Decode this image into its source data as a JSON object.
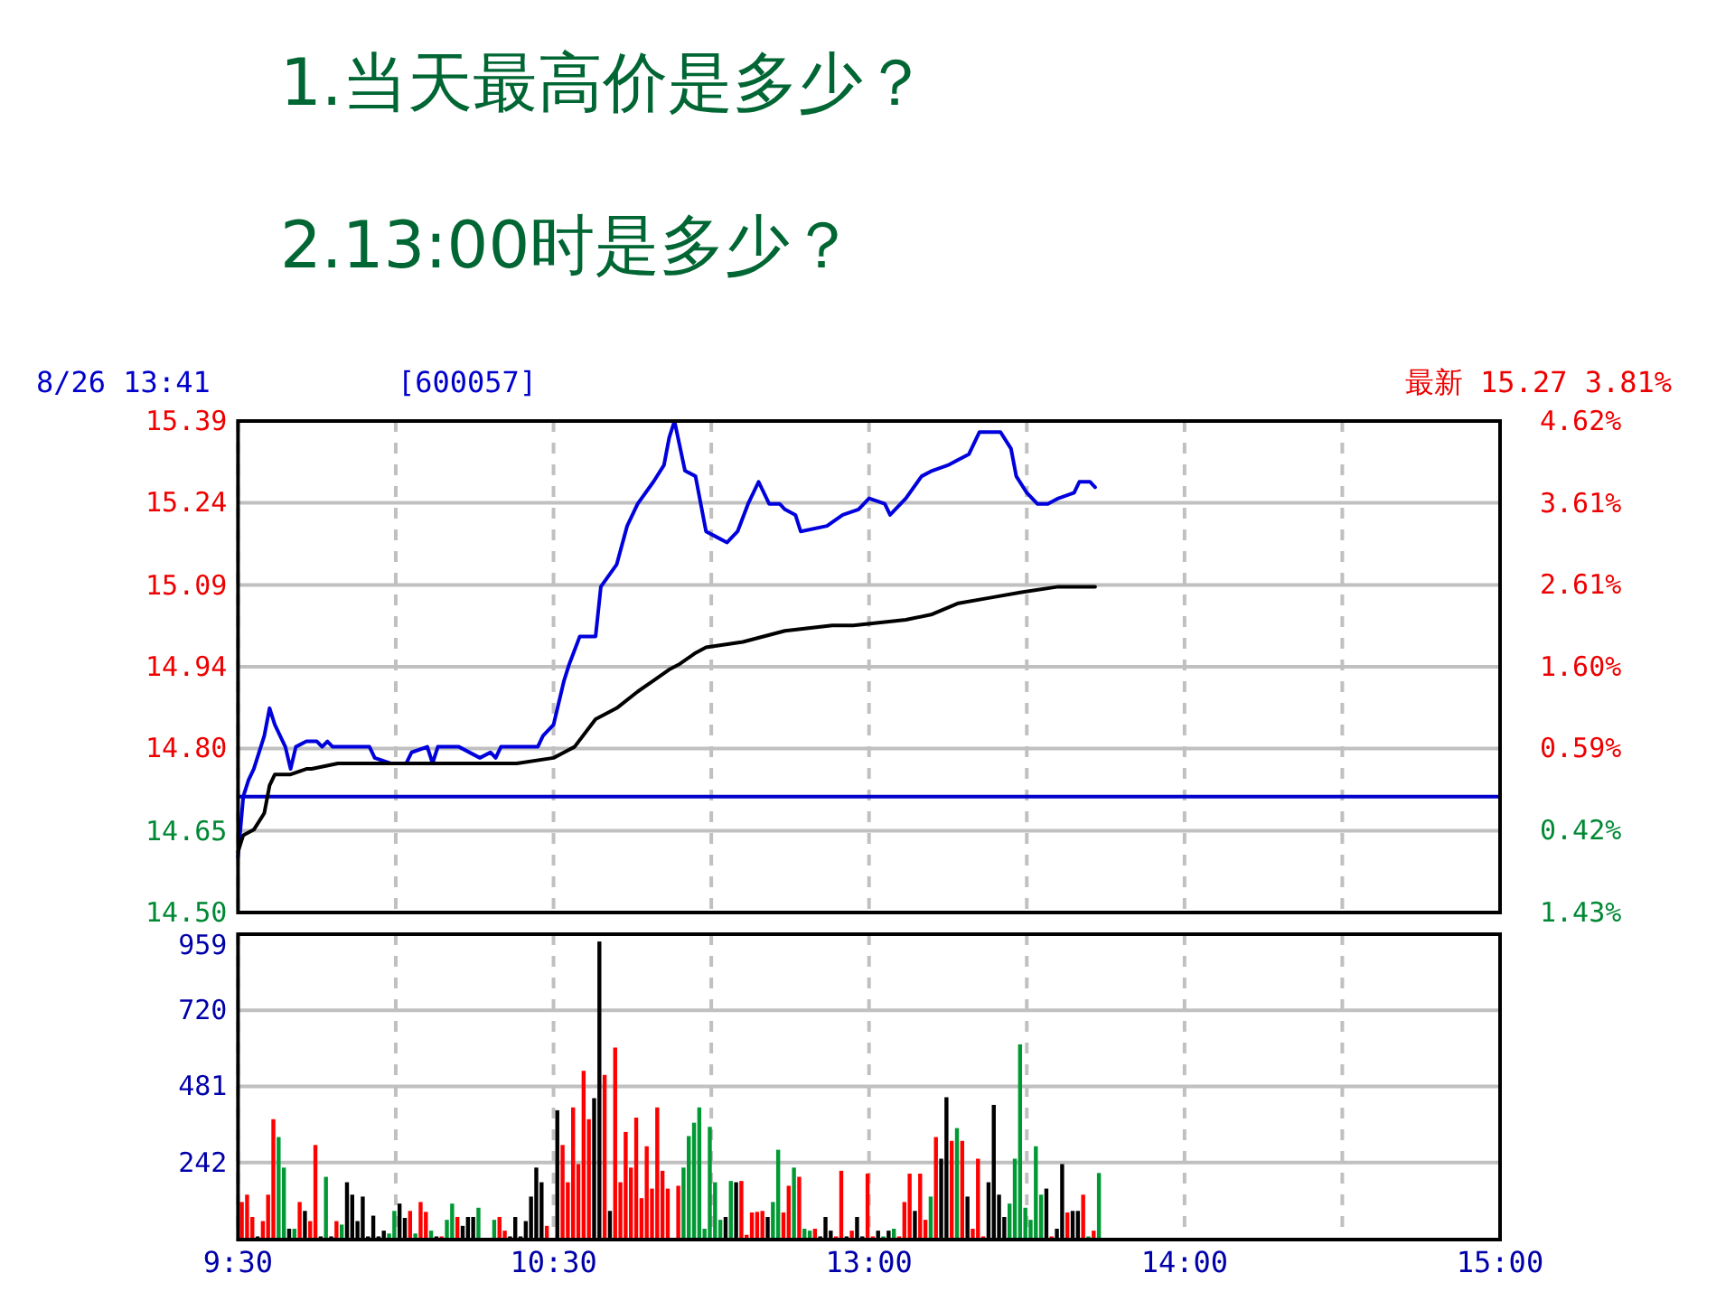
{
  "chart_data": [
    {
      "type": "line",
      "title": "1.当天最高价是多少？",
      "subtitle": "2.13:00时是多少？",
      "annotations": [
        "8/26 13:41",
        "[600057]",
        "最新 15.27 3.81%"
      ],
      "categories": [
        null,
        null,
        null,
        null,
        null,
        null,
        null,
        null,
        null,
        null,
        null,
        null,
        null,
        null,
        null,
        null,
        null,
        null,
        null,
        null,
        null,
        null,
        null,
        null,
        null,
        null,
        null,
        null,
        null,
        null,
        null,
        null,
        null,
        null,
        null,
        null,
        null,
        null,
        null,
        null,
        null,
        null,
        null,
        null,
        null,
        null,
        null,
        null,
        null,
        null,
        null,
        null,
        null,
        null,
        null,
        null,
        null,
        null,
        null,
        null,
        null,
        null,
        null,
        null,
        null,
        null,
        null,
        null,
        null,
        null,
        null,
        null,
        null,
        null,
        null,
        null,
        null,
        null,
        null,
        null,
        null,
        null,
        null,
        null,
        null,
        null,
        null,
        null,
        null,
        null,
        null,
        null,
        null,
        null,
        null,
        null,
        null,
        null,
        null,
        null,
        null,
        null,
        null,
        null,
        null,
        null,
        null,
        null,
        null,
        null,
        null,
        null,
        null,
        null,
        null,
        null,
        null,
        null,
        null,
        null,
        null,
        null,
        null,
        null,
        null,
        null,
        null,
        null,
        null,
        null,
        null,
        null,
        null,
        null,
        null,
        null,
        null,
        null,
        null,
        null,
        null,
        null,
        null,
        null,
        null,
        null,
        null,
        null,
        null,
        null,
        null,
        null,
        null,
        null,
        null,
        null,
        null,
        null,
        null,
        null,
        null,
        null,
        null,
        null,
        null,
        null,
        null,
        null,
        null,
        null,
        null,
        null,
        null,
        null,
        null,
        null,
        null,
        null,
        null,
        null,
        null,
        null,
        null,
        null,
        null,
        null,
        null,
        null,
        null,
        null,
        null,
        null,
        null,
        null,
        null,
        null,
        null,
        null,
        null,
        null,
        null,
        null,
        null,
        null,
        null,
        null,
        null,
        null,
        null,
        null,
        null,
        null,
        null,
        null,
        null,
        null,
        null,
        null,
        null,
        null,
        null,
        null,
        null,
        null,
        null,
        null,
        null,
        null,
        null,
        null,
        null,
        null,
        null,
        null,
        null,
        null,
        null,
        null,
        null,
        null,
        null
      ],
      "ylim": [
        14.5,
        15.39
      ],
      "yticks": [
        {
          "value": 14.5,
          "label": "14.50"
        },
        {
          "value": 14.648,
          "label": "14.65"
        },
        {
          "value": 14.797,
          "label": "14.80"
        },
        {
          "value": 14.945,
          "label": "14.94"
        },
        {
          "value": 15.093,
          "label": "15.09"
        },
        {
          "value": 15.242,
          "label": "15.24"
        },
        {
          "value": 15.39,
          "label": "15.39"
        }
      ],
      "y2lim": [
        -1.43,
        4.62
      ],
      "y2ticks": [
        {
          "value": -1.43,
          "label": "1.43%"
        },
        {
          "value": -0.42,
          "label": "0.42%"
        },
        {
          "value": 0.59,
          "label": "0.59%"
        },
        {
          "value": 1.6,
          "label": "1.60%"
        },
        {
          "value": 2.61,
          "label": "2.61%"
        },
        {
          "value": 3.61,
          "label": "3.61%"
        },
        {
          "value": 4.62,
          "label": "4.62%"
        }
      ],
      "tick_labels": "y",
      "grid": true,
      "ref_lines": [
        {
          "axis": "y",
          "value": 14.71,
          "color": "#0000cc"
        }
      ],
      "series": [
        {
          "color": "#0000dd",
          "values": [
            14.6,
            14.71,
            14.74,
            14.76,
            null,
            14.82,
            14.87,
            14.84,
            null,
            14.8,
            14.76,
            14.8,
            null,
            14.81,
            null,
            14.81,
            14.8,
            14.81,
            14.8,
            null,
            null,
            null,
            null,
            null,
            null,
            14.8,
            14.78,
            null,
            null,
            14.77,
            null,
            null,
            14.77,
            14.79,
            null,
            null,
            14.8,
            14.77,
            14.8,
            null,
            null,
            null,
            14.8,
            null,
            null,
            null,
            14.78,
            null,
            14.79,
            14.78,
            14.8,
            null,
            null,
            null,
            null,
            null,
            null,
            14.8,
            14.82,
            null,
            14.84,
            null,
            14.92,
            14.95,
            null,
            15.0,
            null,
            null,
            15.0,
            15.09,
            null,
            null,
            15.13,
            null,
            15.2,
            null,
            15.24,
            null,
            null,
            15.28,
            null,
            15.31,
            15.36,
            15.39,
            null,
            15.3,
            null,
            15.29,
            15.24,
            15.19,
            null,
            15.18,
            null,
            15.17,
            null,
            15.19,
            null,
            15.24,
            null,
            15.28,
            null,
            15.24,
            null,
            15.24,
            15.23,
            null,
            15.22,
            15.19,
            null,
            null,
            null,
            null,
            15.2,
            null,
            null,
            15.22,
            null,
            null,
            15.23,
            null,
            15.25,
            null,
            null,
            15.24,
            15.22,
            null,
            null,
            15.25,
            null,
            null,
            15.29,
            null,
            15.3,
            null,
            null,
            15.31,
            null,
            null,
            null,
            15.33,
            null,
            15.37,
            null,
            null,
            null,
            15.37,
            null,
            15.34,
            15.29,
            null,
            15.26,
            null,
            15.24,
            null,
            15.24,
            null,
            15.25,
            null,
            null,
            15.26,
            15.28,
            null,
            15.28,
            15.27,
            null,
            null,
            null,
            null,
            null,
            null,
            null,
            null,
            null,
            null,
            null,
            null,
            null,
            null,
            null,
            null,
            null,
            null,
            null,
            null,
            null,
            null,
            null,
            null,
            null,
            null,
            null,
            null,
            null,
            null,
            null,
            null,
            null,
            null,
            null,
            null,
            null,
            null,
            null,
            null,
            null,
            null,
            null,
            null,
            null,
            null,
            null,
            null,
            null,
            null,
            null,
            null,
            null,
            null,
            null,
            null,
            null,
            null,
            null,
            null,
            null,
            null,
            null,
            null,
            null,
            null,
            null,
            null,
            null,
            null,
            null,
            null,
            null,
            null,
            null,
            null,
            null
          ]
        },
        {
          "color": "#000000",
          "values": [
            14.61,
            14.64,
            null,
            14.65,
            null,
            14.68,
            14.73,
            14.75,
            null,
            null,
            14.75,
            null,
            null,
            14.76,
            14.76,
            null,
            null,
            null,
            null,
            14.77,
            null,
            null,
            null,
            null,
            null,
            null,
            14.77,
            null,
            null,
            null,
            null,
            null,
            null,
            null,
            null,
            null,
            null,
            null,
            null,
            null,
            null,
            null,
            null,
            null,
            null,
            null,
            null,
            null,
            null,
            null,
            null,
            null,
            null,
            14.77,
            null,
            null,
            null,
            null,
            null,
            null,
            14.78,
            null,
            14.79,
            null,
            14.8,
            null,
            null,
            null,
            14.85,
            null,
            null,
            null,
            14.87,
            null,
            null,
            null,
            14.9,
            null,
            null,
            14.92,
            null,
            null,
            14.94,
            null,
            14.95,
            null,
            null,
            14.97,
            null,
            14.98,
            null,
            null,
            null,
            null,
            null,
            null,
            14.99,
            null,
            null,
            null,
            null,
            null,
            null,
            null,
            15.01,
            null,
            null,
            null,
            null,
            null,
            null,
            null,
            null,
            15.02,
            null,
            null,
            null,
            15.02,
            null,
            null,
            null,
            null,
            null,
            null,
            null,
            null,
            null,
            15.03,
            null,
            null,
            null,
            null,
            15.04,
            null,
            null,
            null,
            null,
            15.06,
            null,
            null,
            null,
            null,
            null,
            15.07,
            null,
            null,
            null,
            null,
            null,
            15.08,
            null,
            null,
            null,
            null,
            null,
            null,
            15.09,
            null,
            null,
            null,
            null,
            null,
            null,
            15.09,
            null,
            null,
            null,
            null,
            null,
            null,
            null,
            null,
            null,
            null,
            null,
            null,
            null,
            null,
            null,
            null,
            null,
            null,
            null,
            null,
            null,
            null,
            null,
            null,
            null,
            null,
            null,
            null,
            null,
            null,
            null,
            null,
            null,
            null,
            null,
            null,
            null,
            null,
            null,
            null,
            null,
            null,
            null,
            null,
            null,
            null,
            null,
            null,
            null,
            null,
            null,
            null,
            null,
            null,
            null,
            null,
            null,
            null,
            null,
            null,
            null,
            null,
            null,
            null,
            null,
            null,
            null,
            null,
            null,
            null,
            null,
            null,
            null,
            null,
            null,
            null,
            null
          ]
        }
      ]
    },
    {
      "type": "bar",
      "categories": [
        "9:30",
        null,
        null,
        null,
        null,
        null,
        null,
        null,
        null,
        null,
        null,
        null,
        null,
        null,
        null,
        null,
        null,
        null,
        null,
        null,
        null,
        null,
        null,
        null,
        null,
        null,
        null,
        null,
        null,
        null,
        null,
        null,
        null,
        null,
        null,
        null,
        null,
        null,
        null,
        null,
        null,
        null,
        null,
        null,
        null,
        null,
        null,
        null,
        null,
        null,
        null,
        null,
        null,
        null,
        null,
        null,
        null,
        null,
        null,
        null,
        "10:30",
        null,
        null,
        null,
        null,
        null,
        null,
        null,
        null,
        null,
        null,
        null,
        null,
        null,
        null,
        null,
        null,
        null,
        null,
        null,
        null,
        null,
        null,
        null,
        null,
        null,
        null,
        null,
        null,
        null,
        null,
        null,
        null,
        null,
        null,
        null,
        null,
        null,
        null,
        null,
        null,
        null,
        null,
        null,
        null,
        null,
        null,
        null,
        null,
        null,
        null,
        null,
        null,
        null,
        null,
        null,
        null,
        null,
        null,
        null,
        "13:00",
        null,
        null,
        null,
        null,
        null,
        null,
        null,
        null,
        null,
        null,
        null,
        null,
        null,
        null,
        null,
        null,
        null,
        null,
        null,
        null,
        null,
        null,
        null,
        null,
        null,
        null,
        null,
        null,
        null,
        null,
        null,
        null,
        null,
        null,
        null,
        null,
        null,
        null,
        null,
        null,
        null,
        null,
        null,
        null,
        null,
        null,
        null,
        null,
        null,
        null,
        null,
        null,
        null,
        null,
        null,
        null,
        null,
        null,
        null,
        "14:00",
        null,
        null,
        null,
        null,
        null,
        null,
        null,
        null,
        null,
        null,
        null,
        null,
        null,
        null,
        null,
        null,
        null,
        null,
        null,
        null,
        null,
        null,
        null,
        null,
        null,
        null,
        null,
        null,
        null,
        null,
        null,
        null,
        null,
        null,
        null,
        null,
        null,
        null,
        null,
        null,
        null,
        null,
        null,
        null,
        null,
        null,
        null,
        null,
        null,
        null,
        null,
        null,
        null,
        null,
        null,
        null,
        null,
        null,
        null,
        "15:00"
      ],
      "ylim": [
        0,
        959
      ],
      "yticks": [
        242,
        481,
        720,
        959
      ],
      "grid": true,
      "values": [
        118,
        141,
        71,
        10,
        58,
        141,
        378,
        322,
        226,
        34,
        34,
        118,
        90,
        58,
        297,
        10,
        197,
        10,
        58,
        47,
        180,
        141,
        58,
        135,
        10,
        75,
        10,
        28,
        19,
        90,
        113,
        68,
        90,
        19,
        118,
        87,
        28,
        10,
        10,
        62,
        113,
        71,
        43,
        71,
        71,
        100,
        null,
        null,
        62,
        71,
        28,
        10,
        71,
        10,
        58,
        135,
        226,
        180,
        43,
        null,
        406,
        297,
        180,
        415,
        237,
        530,
        378,
        444,
        936,
        517,
        90,
        603,
        180,
        338,
        226,
        383,
        130,
        293,
        160,
        415,
        216,
        160,
        null,
        169,
        226,
        325,
        367,
        415,
        34,
        354,
        180,
        62,
        71,
        184,
        180,
        184,
        15,
        85,
        87,
        90,
        71,
        118,
        282,
        85,
        169,
        226,
        197,
        34,
        28,
        34,
        10,
        71,
        28,
        10,
        216,
        10,
        28,
        71,
        10,
        207,
        10,
        28,
        10,
        28,
        34,
        10,
        118,
        207,
        90,
        207,
        62,
        135,
        322,
        254,
        447,
        310,
        350,
        310,
        135,
        34,
        254,
        10,
        180,
        423,
        141,
        71,
        113,
        254,
        613,
        100,
        62,
        293,
        141,
        160,
        10,
        34,
        237,
        85,
        90,
        90,
        141,
        10,
        28,
        209,
        null,
        null,
        null,
        null,
        null,
        null,
        null,
        null,
        null,
        null,
        null,
        null,
        null,
        null,
        null,
        null,
        null,
        null,
        null,
        null,
        null,
        null,
        null,
        null,
        null,
        null,
        null,
        null,
        null,
        null,
        null,
        null,
        null,
        null,
        null,
        null,
        null,
        null,
        null,
        null,
        null,
        null,
        null,
        null,
        null,
        null,
        null,
        null,
        null,
        null,
        null,
        null,
        null,
        null,
        null,
        null,
        null,
        null,
        null,
        null,
        null,
        null,
        null,
        null,
        null,
        null,
        null,
        null,
        null,
        null,
        null,
        null,
        null,
        null,
        null,
        null,
        null
      ],
      "colors": [
        "#ff0000",
        "#ff0000",
        "#ff0000",
        "#000000",
        "#ff0000",
        "#ff0000",
        "#ff0000",
        "#009933",
        "#009933",
        "#000000",
        "#009933",
        "#ff0000",
        "#000000",
        "#ff0000",
        "#ff0000",
        "#000000",
        "#009933",
        "#000000",
        "#ff0000",
        "#009933",
        "#000000",
        "#000000",
        "#000000",
        "#000000",
        "#000000",
        "#000000",
        "#000000",
        "#000000",
        "#009933",
        "#009933",
        "#000000",
        "#000000",
        "#ff0000",
        "#009933",
        "#ff0000",
        "#ff0000",
        "#009933",
        "#000000",
        "#ff0000",
        "#009933",
        "#009933",
        "#ff0000",
        "#000000",
        "#000000",
        "#000000",
        "#009933",
        null,
        null,
        "#009933",
        "#ff0000",
        "#ff0000",
        "#000000",
        "#000000",
        "#000000",
        "#000000",
        "#000000",
        "#000000",
        "#000000",
        "#ff0000",
        null,
        "#000000",
        "#ff0000",
        "#ff0000",
        "#ff0000",
        "#ff0000",
        "#ff0000",
        "#ff0000",
        "#000000",
        "#000000",
        "#ff0000",
        "#000000",
        "#ff0000",
        "#ff0000",
        "#ff0000",
        "#ff0000",
        "#ff0000",
        "#ff0000",
        "#ff0000",
        "#ff0000",
        "#ff0000",
        "#ff0000",
        "#ff0000",
        null,
        "#ff0000",
        "#009933",
        "#009933",
        "#009933",
        "#009933",
        "#009933",
        "#009933",
        "#009933",
        "#009933",
        "#000000",
        "#009933",
        "#000000",
        "#ff0000",
        "#ff0000",
        "#ff0000",
        "#ff0000",
        "#ff0000",
        "#000000",
        "#009933",
        "#009933",
        "#ff0000",
        "#ff0000",
        "#009933",
        "#ff0000",
        "#009933",
        "#009933",
        "#ff0000",
        "#000000",
        "#000000",
        "#000000",
        "#ff0000",
        "#ff0000",
        "#000000",
        "#ff0000",
        "#000000",
        "#000000",
        "#ff0000",
        "#ff0000",
        "#000000",
        "#009933",
        "#000000",
        "#009933",
        "#ff0000",
        "#ff0000",
        "#ff0000",
        "#000000",
        "#ff0000",
        "#ff0000",
        "#009933",
        "#ff0000",
        "#000000",
        "#000000",
        "#ff0000",
        "#009933",
        "#ff0000",
        "#000000",
        "#ff0000",
        "#ff0000",
        "#ff0000",
        "#000000",
        "#000000",
        "#000000",
        "#000000",
        "#009933",
        "#009933",
        "#009933",
        "#009933",
        "#009933",
        "#009933",
        "#009933",
        "#000000",
        "#ff0000",
        "#000000",
        "#000000",
        "#ff0000",
        "#000000",
        "#000000",
        "#ff0000",
        "#009933",
        "#ff0000",
        "#009933",
        null,
        null,
        null,
        null,
        null,
        null,
        null,
        null,
        null,
        null,
        null,
        null,
        null,
        null,
        null,
        null,
        null,
        null,
        null,
        null,
        null,
        null,
        null,
        null,
        null,
        null,
        null,
        null,
        null,
        null,
        null,
        null,
        null,
        null,
        null,
        null,
        null,
        null,
        null,
        null,
        null,
        null,
        null,
        null,
        null,
        null,
        null,
        null,
        null,
        null,
        null,
        null,
        null,
        null,
        null,
        null,
        null,
        null,
        null,
        null,
        null,
        null,
        null,
        null,
        null,
        null,
        null,
        null,
        null,
        null,
        null,
        null,
        null,
        null,
        null,
        null,
        null
      ]
    }
  ]
}
